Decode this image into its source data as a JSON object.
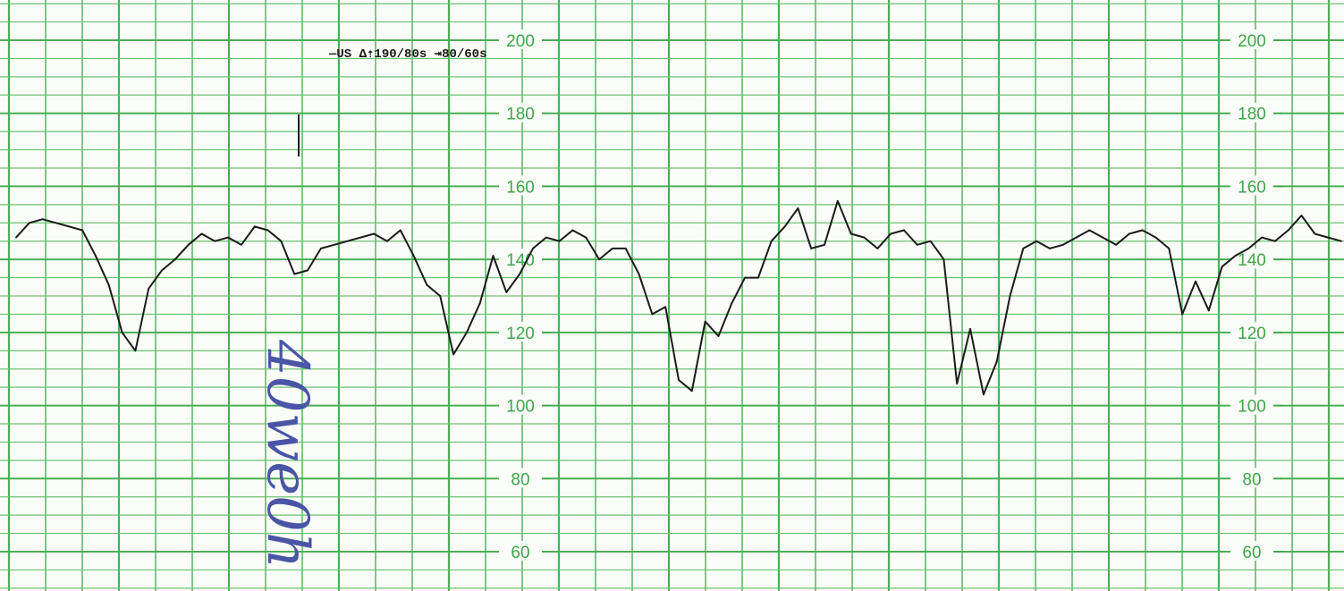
{
  "colors": {
    "paper": "#fbfdf9",
    "grid": "#4cae55",
    "grid_minor": "#6cc072",
    "tick_text": "#3fa64a",
    "trace": "#1b1b1b",
    "ink": "#4a55a6"
  },
  "header": {
    "text": "—US  Δ⇡190/80s  ⇥80/60s"
  },
  "handwriting": "40we0h",
  "chart_data": {
    "type": "line",
    "title": "",
    "xlabel": "",
    "ylabel": "",
    "ylim": [
      50,
      210
    ],
    "yticks": [
      60,
      80,
      100,
      120,
      140,
      160,
      180,
      200
    ],
    "tick_labels": [
      "60",
      "80",
      "100",
      "120",
      "140",
      "160",
      "180",
      "200"
    ],
    "grid": true,
    "series": [
      {
        "x": [
          0,
          1,
          2,
          3,
          4,
          5,
          6,
          7,
          8,
          9,
          10,
          11,
          12,
          13,
          14,
          15,
          16,
          17,
          18,
          19,
          20,
          21,
          22,
          23,
          24,
          25,
          26,
          27,
          28,
          29,
          30,
          31,
          32,
          33,
          34,
          35,
          36,
          37,
          38,
          39,
          40,
          41,
          42,
          43,
          44,
          45,
          46,
          47,
          48,
          49,
          50,
          51,
          52,
          53,
          54,
          55,
          56,
          57,
          58,
          59,
          60,
          61,
          62,
          63,
          64,
          65,
          66,
          67,
          68,
          69,
          70,
          71,
          72,
          73,
          74,
          75,
          76,
          77,
          78,
          79,
          80,
          81,
          82,
          83,
          84,
          85,
          86,
          87,
          88,
          89,
          90,
          91,
          92,
          93,
          94,
          95,
          96,
          97,
          98,
          99,
          100
        ],
        "values": [
          146,
          150,
          151,
          150,
          149,
          148,
          141,
          133,
          120,
          115,
          132,
          137,
          140,
          144,
          147,
          145,
          146,
          144,
          149,
          148,
          145,
          136,
          137,
          143,
          144,
          145,
          146,
          147,
          145,
          148,
          141,
          133,
          130,
          114,
          120,
          128,
          141,
          131,
          136,
          143,
          146,
          145,
          148,
          146,
          140,
          143,
          143,
          136,
          125,
          127,
          107,
          104,
          123,
          119,
          128,
          135,
          135,
          145,
          149,
          154,
          143,
          144,
          156,
          147,
          146,
          143,
          147,
          148,
          144,
          145,
          140,
          106,
          121,
          103,
          112,
          130,
          143,
          145,
          143,
          144,
          146,
          148,
          146,
          144,
          147,
          148,
          146,
          143,
          125,
          134,
          126,
          138,
          141,
          143,
          146,
          145,
          148,
          152,
          147,
          146,
          145
        ]
      }
    ]
  }
}
